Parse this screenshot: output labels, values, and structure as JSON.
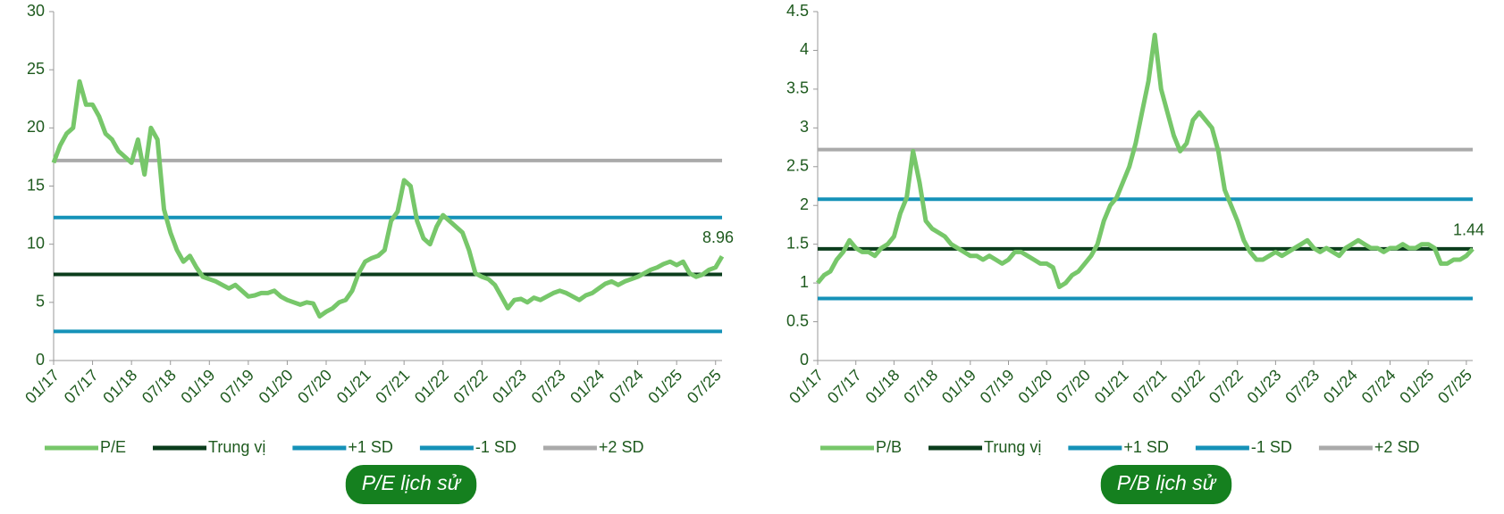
{
  "chart_data": [
    {
      "type": "line",
      "caption": "P/E lịch sử",
      "end_label": "8.96",
      "ylim": [
        0,
        30
      ],
      "yticks": [
        0,
        5,
        10,
        15,
        20,
        25,
        30
      ],
      "x": [
        "01/17",
        "02/17",
        "03/17",
        "04/17",
        "05/17",
        "06/17",
        "07/17",
        "08/17",
        "09/17",
        "10/17",
        "11/17",
        "12/17",
        "01/18",
        "02/18",
        "03/18",
        "04/18",
        "05/18",
        "06/18",
        "07/18",
        "08/18",
        "09/18",
        "10/18",
        "11/18",
        "12/18",
        "01/19",
        "02/19",
        "03/19",
        "04/19",
        "05/19",
        "06/19",
        "07/19",
        "08/19",
        "09/19",
        "10/19",
        "11/19",
        "12/19",
        "01/20",
        "02/20",
        "03/20",
        "04/20",
        "05/20",
        "06/20",
        "07/20",
        "08/20",
        "09/20",
        "10/20",
        "11/20",
        "12/20",
        "01/21",
        "02/21",
        "03/21",
        "04/21",
        "05/21",
        "06/21",
        "07/21",
        "08/21",
        "09/21",
        "10/21",
        "11/21",
        "12/21",
        "01/22",
        "02/22",
        "03/22",
        "04/22",
        "05/22",
        "06/22",
        "07/22",
        "08/22",
        "09/22",
        "10/22",
        "11/22",
        "12/22",
        "01/23",
        "02/23",
        "03/23",
        "04/23",
        "05/23",
        "06/23",
        "07/23",
        "08/23",
        "09/23",
        "10/23",
        "11/23",
        "12/23",
        "01/24",
        "02/24",
        "03/24",
        "04/24",
        "05/24",
        "06/24",
        "07/24",
        "08/24",
        "09/24",
        "10/24",
        "11/24",
        "12/24",
        "01/25",
        "02/25",
        "03/25",
        "04/25",
        "05/25",
        "06/25",
        "07/25",
        "08/25"
      ],
      "series": [
        {
          "name": "P/E",
          "color": "#77c76a",
          "values": [
            17,
            18.5,
            19.5,
            20,
            24,
            22,
            22,
            21,
            19.5,
            19,
            18,
            17.5,
            17,
            19,
            16,
            20,
            19,
            13,
            11,
            9.5,
            8.5,
            9,
            8,
            7.2,
            7,
            6.8,
            6.5,
            6.2,
            6.5,
            6,
            5.5,
            5.6,
            5.8,
            5.8,
            6,
            5.5,
            5.2,
            5,
            4.8,
            5,
            4.9,
            3.8,
            4.2,
            4.5,
            5,
            5.2,
            6,
            7.5,
            8.5,
            8.8,
            9,
            9.5,
            12,
            12.8,
            15.5,
            15,
            12,
            10.5,
            10,
            11.5,
            12.5,
            12,
            11.5,
            11,
            9.5,
            7.5,
            7.2,
            7,
            6.5,
            5.5,
            4.5,
            5.2,
            5.3,
            5,
            5.4,
            5.2,
            5.5,
            5.8,
            6,
            5.8,
            5.5,
            5.2,
            5.6,
            5.8,
            6.2,
            6.6,
            6.8,
            6.5,
            6.8,
            7,
            7.2,
            7.5,
            7.8,
            8,
            8.3,
            8.5,
            8.2,
            8.5,
            7.5,
            7.2,
            7.4,
            7.8,
            8,
            8.96
          ]
        },
        {
          "name": "Trung vị",
          "color": "#0b3d1c",
          "value": 7.4
        },
        {
          "name": "+1 SD",
          "color": "#1592b8",
          "value": 12.3
        },
        {
          "name": "-1 SD",
          "color": "#1592b8",
          "value": 2.5
        },
        {
          "name": "+2 SD",
          "color": "#aaaaaa",
          "value": 17.2
        }
      ]
    },
    {
      "type": "line",
      "caption": "P/B lịch sử",
      "end_label": "1.44",
      "ylim": [
        0,
        4.5
      ],
      "yticks": [
        0,
        0.5,
        1,
        1.5,
        2,
        2.5,
        3,
        3.5,
        4,
        4.5
      ],
      "x": [
        "01/17",
        "02/17",
        "03/17",
        "04/17",
        "05/17",
        "06/17",
        "07/17",
        "08/17",
        "09/17",
        "10/17",
        "11/17",
        "12/17",
        "01/18",
        "02/18",
        "03/18",
        "04/18",
        "05/18",
        "06/18",
        "07/18",
        "08/18",
        "09/18",
        "10/18",
        "11/18",
        "12/18",
        "01/19",
        "02/19",
        "03/19",
        "04/19",
        "05/19",
        "06/19",
        "07/19",
        "08/19",
        "09/19",
        "10/19",
        "11/19",
        "12/19",
        "01/20",
        "02/20",
        "03/20",
        "04/20",
        "05/20",
        "06/20",
        "07/20",
        "08/20",
        "09/20",
        "10/20",
        "11/20",
        "12/20",
        "01/21",
        "02/21",
        "03/21",
        "04/21",
        "05/21",
        "06/21",
        "07/21",
        "08/21",
        "09/21",
        "10/21",
        "11/21",
        "12/21",
        "01/22",
        "02/22",
        "03/22",
        "04/22",
        "05/22",
        "06/22",
        "07/22",
        "08/22",
        "09/22",
        "10/22",
        "11/22",
        "12/22",
        "01/23",
        "02/23",
        "03/23",
        "04/23",
        "05/23",
        "06/23",
        "07/23",
        "08/23",
        "09/23",
        "10/23",
        "11/23",
        "12/23",
        "01/24",
        "02/24",
        "03/24",
        "04/24",
        "05/24",
        "06/24",
        "07/24",
        "08/24",
        "09/24",
        "10/24",
        "11/24",
        "12/24",
        "01/25",
        "02/25",
        "03/25",
        "04/25",
        "05/25",
        "06/25",
        "07/25",
        "08/25"
      ],
      "series": [
        {
          "name": "P/B",
          "color": "#77c76a",
          "values": [
            1.0,
            1.1,
            1.15,
            1.3,
            1.4,
            1.55,
            1.45,
            1.4,
            1.4,
            1.35,
            1.45,
            1.5,
            1.6,
            1.9,
            2.1,
            2.7,
            2.3,
            1.8,
            1.7,
            1.65,
            1.6,
            1.5,
            1.45,
            1.4,
            1.35,
            1.35,
            1.3,
            1.35,
            1.3,
            1.25,
            1.3,
            1.4,
            1.4,
            1.35,
            1.3,
            1.25,
            1.25,
            1.2,
            0.95,
            1.0,
            1.1,
            1.15,
            1.25,
            1.35,
            1.5,
            1.8,
            2.0,
            2.1,
            2.3,
            2.5,
            2.8,
            3.2,
            3.6,
            4.2,
            3.5,
            3.2,
            2.9,
            2.7,
            2.8,
            3.1,
            3.2,
            3.1,
            3.0,
            2.7,
            2.2,
            2.0,
            1.8,
            1.55,
            1.4,
            1.3,
            1.3,
            1.35,
            1.4,
            1.35,
            1.4,
            1.45,
            1.5,
            1.55,
            1.45,
            1.4,
            1.45,
            1.4,
            1.35,
            1.45,
            1.5,
            1.55,
            1.5,
            1.45,
            1.45,
            1.4,
            1.45,
            1.45,
            1.5,
            1.45,
            1.45,
            1.5,
            1.5,
            1.45,
            1.25,
            1.25,
            1.3,
            1.3,
            1.35,
            1.44
          ]
        },
        {
          "name": "Trung vị",
          "color": "#0b3d1c",
          "value": 1.44
        },
        {
          "name": "+1 SD",
          "color": "#1592b8",
          "value": 2.08
        },
        {
          "name": "-1 SD",
          "color": "#1592b8",
          "value": 0.8
        },
        {
          "name": "+2 SD",
          "color": "#aaaaaa",
          "value": 2.72
        }
      ]
    }
  ]
}
